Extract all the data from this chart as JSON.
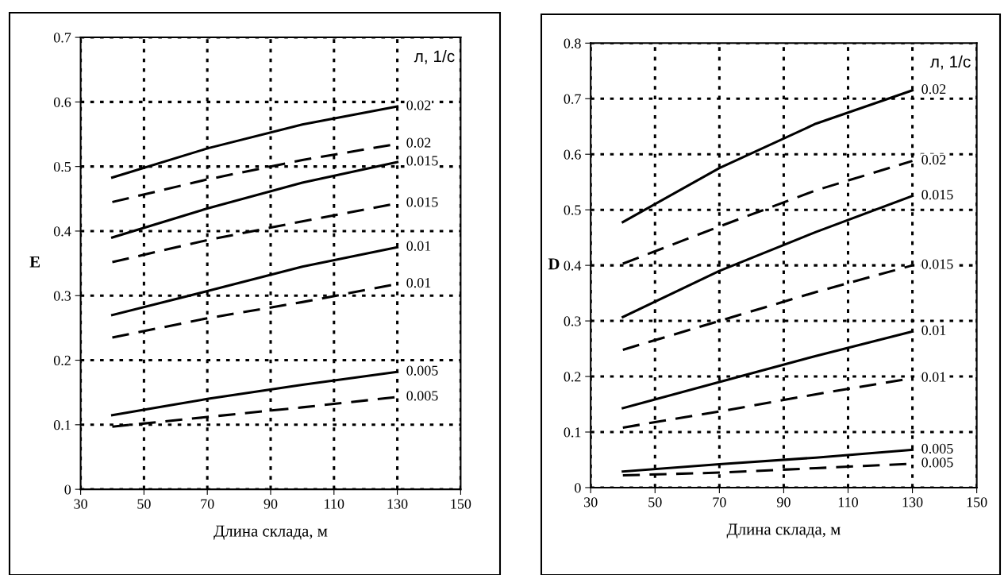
{
  "chart_data": [
    {
      "type": "line",
      "xlabel": "Длина склада, м",
      "ylabel": "E",
      "x": [
        40,
        70,
        100,
        130
      ],
      "xlim": [
        30,
        150
      ],
      "xticks": [
        30,
        50,
        70,
        90,
        110,
        130,
        150
      ],
      "ylim": [
        0,
        0.7
      ],
      "yticks": [
        0,
        0.1,
        0.2,
        0.3,
        0.4,
        0.5,
        0.6,
        0.7
      ],
      "grid": true,
      "series": [
        {
          "name": "0.02",
          "color": "#000000",
          "line_style": "solid",
          "values": [
            0.483,
            0.528,
            0.565,
            0.593
          ]
        },
        {
          "name": "0.02",
          "color": "#000000",
          "line_style": "dashed",
          "values": [
            0.445,
            0.48,
            0.51,
            0.535
          ]
        },
        {
          "name": "0.015",
          "color": "#000000",
          "line_style": "solid",
          "values": [
            0.39,
            0.435,
            0.475,
            0.507
          ]
        },
        {
          "name": "0.015",
          "color": "#000000",
          "line_style": "dashed",
          "values": [
            0.352,
            0.386,
            0.415,
            0.443
          ]
        },
        {
          "name": "0.01",
          "color": "#000000",
          "line_style": "solid",
          "values": [
            0.27,
            0.307,
            0.345,
            0.375
          ]
        },
        {
          "name": "0.01",
          "color": "#000000",
          "line_style": "dashed",
          "values": [
            0.235,
            0.265,
            0.29,
            0.318
          ]
        },
        {
          "name": "0.005",
          "color": "#000000",
          "line_style": "solid",
          "values": [
            0.115,
            0.14,
            0.162,
            0.182
          ]
        },
        {
          "name": "0.005",
          "color": "#000000",
          "line_style": "dashed",
          "values": [
            0.097,
            0.112,
            0.127,
            0.143
          ]
        }
      ],
      "annotations": [
        "л, 1/с"
      ]
    },
    {
      "type": "line",
      "xlabel": "Длина склада, м",
      "ylabel": "D",
      "x": [
        40,
        70,
        100,
        130
      ],
      "xlim": [
        30,
        150
      ],
      "xticks": [
        30,
        50,
        70,
        90,
        110,
        130,
        150
      ],
      "ylim": [
        0,
        0.8
      ],
      "yticks": [
        0,
        0.1,
        0.2,
        0.3,
        0.4,
        0.5,
        0.6,
        0.7,
        0.8
      ],
      "grid": true,
      "series": [
        {
          "name": "0.02",
          "color": "#000000",
          "line_style": "solid",
          "values": [
            0.478,
            0.575,
            0.655,
            0.715
          ]
        },
        {
          "name": "0.02",
          "color": "#000000",
          "line_style": "dashed",
          "values": [
            0.403,
            0.47,
            0.535,
            0.588
          ]
        },
        {
          "name": "0.015",
          "color": "#000000",
          "line_style": "solid",
          "values": [
            0.307,
            0.39,
            0.46,
            0.525
          ]
        },
        {
          "name": "0.015",
          "color": "#000000",
          "line_style": "dashed",
          "values": [
            0.248,
            0.3,
            0.352,
            0.4
          ]
        },
        {
          "name": "0.01",
          "color": "#000000",
          "line_style": "solid",
          "values": [
            0.143,
            0.19,
            0.237,
            0.281
          ]
        },
        {
          "name": "0.01",
          "color": "#000000",
          "line_style": "dashed",
          "values": [
            0.108,
            0.137,
            0.168,
            0.197
          ]
        },
        {
          "name": "0.005",
          "color": "#000000",
          "line_style": "solid",
          "values": [
            0.029,
            0.042,
            0.054,
            0.068
          ]
        },
        {
          "name": "0.005",
          "color": "#000000",
          "line_style": "dashed",
          "values": [
            0.022,
            0.027,
            0.035,
            0.043
          ]
        }
      ],
      "annotations": [
        "л, 1/с"
      ]
    }
  ]
}
